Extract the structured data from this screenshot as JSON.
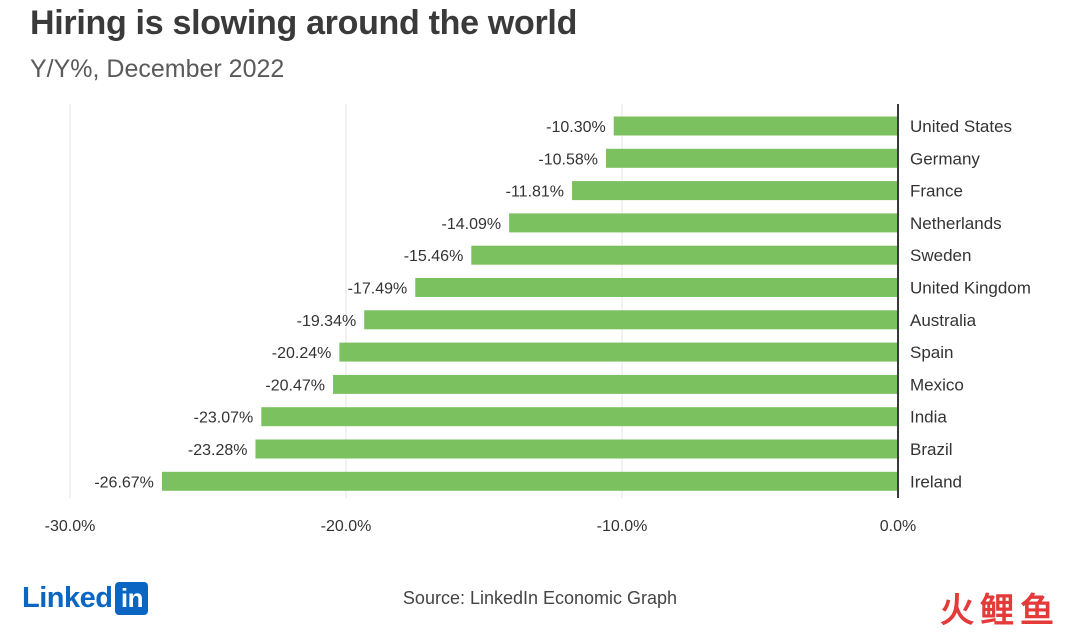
{
  "header": {
    "title": "Hiring is slowing around the world",
    "subtitle": "Y/Y%, December 2022"
  },
  "footer": {
    "logo_text": "Linked",
    "logo_box_text": "in",
    "source": "Source: LinkedIn Economic Graph",
    "watermark": "火鲤鱼"
  },
  "colors": {
    "bar": "#7cc15f",
    "axis": "#3a3a3a",
    "grid": "#e6e6e6",
    "brand": "#0a66c2",
    "watermark": "#e43a3a"
  },
  "chart_data": {
    "type": "bar",
    "orientation": "horizontal",
    "title": "Hiring is slowing around the world",
    "subtitle": "Y/Y%, December 2022",
    "categories": [
      "United States",
      "Germany",
      "France",
      "Netherlands",
      "Sweden",
      "United Kingdom",
      "Australia",
      "Spain",
      "Mexico",
      "India",
      "Brazil",
      "Ireland"
    ],
    "values": [
      -10.3,
      -10.58,
      -11.81,
      -14.09,
      -15.46,
      -17.49,
      -19.34,
      -20.24,
      -20.47,
      -23.07,
      -23.28,
      -26.67
    ],
    "data_labels": [
      "-10.30%",
      "-10.58%",
      "-11.81%",
      "-14.09%",
      "-15.46%",
      "-17.49%",
      "-19.34%",
      "-20.24%",
      "-20.47%",
      "-23.07%",
      "-23.28%",
      "-26.67%"
    ],
    "x_ticks": [
      -30,
      -20,
      -10,
      0
    ],
    "x_tick_labels": [
      "-30.0%",
      "-20.0%",
      "-10.0%",
      "0.0%"
    ],
    "xlim": [
      -30,
      0
    ],
    "grid": true,
    "legend": "none",
    "xlabel": "",
    "ylabel": ""
  }
}
